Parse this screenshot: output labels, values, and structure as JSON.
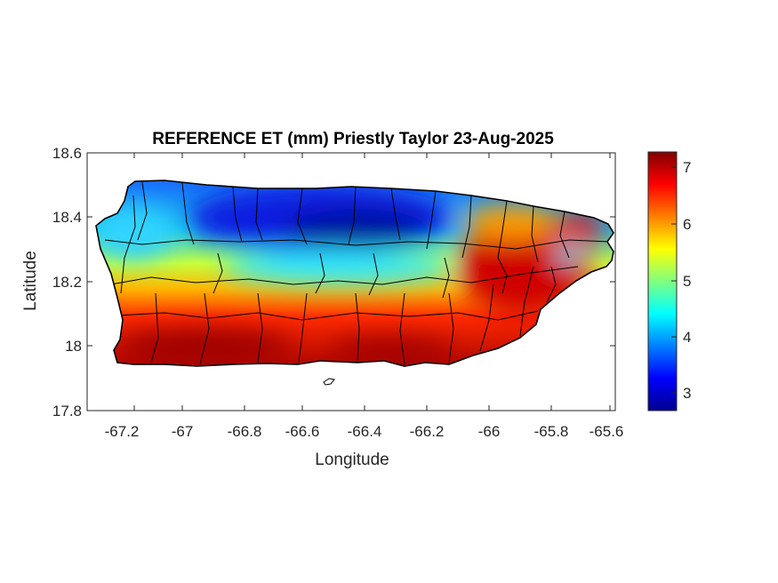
{
  "figure": {
    "title": "REFERENCE ET (mm) Priestly Taylor 23-Aug-2025",
    "xlabel": "Longitude",
    "ylabel": "Latitude"
  },
  "map": {
    "region": "Puerto Rico",
    "variable": "Reference evapotranspiration (Priestley-Taylor)",
    "units": "mm",
    "date": "23-Aug-2025",
    "colormap": "jet",
    "boundaries": "municipalities",
    "boundary_color": "#000000",
    "pattern": {
      "low_zone": "north-central interior (~3-4 mm, blue)",
      "high_zone": "southern coast and eastern interior (~6.5-7.3 mm, dark red)"
    }
  },
  "chart_data": {
    "type": "heatmap",
    "title": "REFERENCE ET (mm) Priestly Taylor 23-Aug-2025",
    "xlabel": "Longitude",
    "ylabel": "Latitude",
    "xlim": [
      -67.3,
      -65.58
    ],
    "ylim": [
      17.8,
      18.6
    ],
    "xticks": [
      -67.2,
      -67,
      -66.8,
      -66.6,
      -66.4,
      -66.2,
      -66,
      -65.8,
      -65.6
    ],
    "xtick_labels": [
      "-67.2",
      "-67",
      "-66.8",
      "-66.6",
      "-66.4",
      "-66.2",
      "-66",
      "-65.8",
      "-65.6"
    ],
    "yticks": [
      17.8,
      18,
      18.2,
      18.4,
      18.6
    ],
    "ytick_labels": [
      "17.8",
      "18",
      "18.2",
      "18.4",
      "18.6"
    ],
    "colorbar": {
      "clim": [
        2.7,
        7.35
      ],
      "ticks": [
        3,
        4,
        5,
        6,
        7
      ],
      "tick_labels": [
        "3",
        "4",
        "5",
        "6",
        "7"
      ],
      "colormap": "jet"
    },
    "grid": false
  }
}
